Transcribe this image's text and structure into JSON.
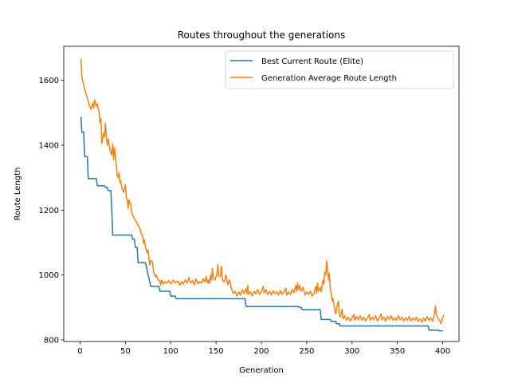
{
  "chart_data": {
    "type": "line",
    "title": "Routes throughout the generations",
    "xlabel": "Generation",
    "ylabel": "Route Length",
    "xlim": [
      -18,
      418
    ],
    "ylim": [
      795,
      1705
    ],
    "xticks": [
      0,
      50,
      100,
      150,
      200,
      250,
      300,
      350,
      400
    ],
    "yticks": [
      800,
      1000,
      1200,
      1400,
      1600
    ],
    "xtick_labels": [
      "0",
      "50",
      "100",
      "150",
      "200",
      "250",
      "300",
      "350",
      "400"
    ],
    "ytick_labels": [
      "800",
      "1000",
      "1200",
      "1400",
      "1600"
    ],
    "grid": false,
    "legend_position": "upper right",
    "series": [
      {
        "name": "Best Current Route (Elite)",
        "color": "#1f77b4",
        "points": [
          [
            1,
            1485
          ],
          [
            2,
            1440
          ],
          [
            4,
            1440
          ],
          [
            5,
            1365
          ],
          [
            8,
            1365
          ],
          [
            9,
            1297
          ],
          [
            18,
            1297
          ],
          [
            19,
            1275
          ],
          [
            27,
            1275
          ],
          [
            28,
            1270
          ],
          [
            30,
            1270
          ],
          [
            31,
            1260
          ],
          [
            34,
            1260
          ],
          [
            35,
            1200
          ],
          [
            36,
            1123
          ],
          [
            57,
            1123
          ],
          [
            58,
            1110
          ],
          [
            60,
            1110
          ],
          [
            61,
            1085
          ],
          [
            63,
            1085
          ],
          [
            64,
            1038
          ],
          [
            72,
            1038
          ],
          [
            73,
            1030
          ],
          [
            75,
            1000
          ],
          [
            76,
            990
          ],
          [
            78,
            965
          ],
          [
            87,
            965
          ],
          [
            88,
            950
          ],
          [
            99,
            950
          ],
          [
            100,
            935
          ],
          [
            105,
            935
          ],
          [
            106,
            927
          ],
          [
            182,
            927
          ],
          [
            183,
            903
          ],
          [
            241,
            903
          ],
          [
            242,
            900
          ],
          [
            244,
            900
          ],
          [
            245,
            893
          ],
          [
            265,
            893
          ],
          [
            266,
            863
          ],
          [
            276,
            863
          ],
          [
            277,
            857
          ],
          [
            282,
            857
          ],
          [
            283,
            850
          ],
          [
            286,
            850
          ],
          [
            287,
            843
          ],
          [
            384,
            843
          ],
          [
            385,
            830
          ],
          [
            395,
            830
          ],
          [
            396,
            828
          ],
          [
            400,
            828
          ]
        ]
      },
      {
        "name": "Generation Average Route Length",
        "color": "#ff7f0e",
        "points": [
          [
            1,
            1665
          ],
          [
            2,
            1610
          ],
          [
            4,
            1585
          ],
          [
            6,
            1565
          ],
          [
            8,
            1545
          ],
          [
            10,
            1525
          ],
          [
            12,
            1510
          ],
          [
            14,
            1530
          ],
          [
            15,
            1515
          ],
          [
            16,
            1540
          ],
          [
            18,
            1520
          ],
          [
            19,
            1528
          ],
          [
            21,
            1500
          ],
          [
            22,
            1470
          ],
          [
            23,
            1482
          ],
          [
            24,
            1405
          ],
          [
            26,
            1438
          ],
          [
            27,
            1425
          ],
          [
            28,
            1468
          ],
          [
            29,
            1430
          ],
          [
            30,
            1400
          ],
          [
            31,
            1420
          ],
          [
            33,
            1385
          ],
          [
            35,
            1370
          ],
          [
            36,
            1405
          ],
          [
            37,
            1355
          ],
          [
            38,
            1392
          ],
          [
            40,
            1340
          ],
          [
            41,
            1305
          ],
          [
            42,
            1300
          ],
          [
            43,
            1315
          ],
          [
            44,
            1285
          ],
          [
            45,
            1290
          ],
          [
            46,
            1268
          ],
          [
            48,
            1255
          ],
          [
            50,
            1278
          ],
          [
            51,
            1240
          ],
          [
            52,
            1230
          ],
          [
            53,
            1205
          ],
          [
            54,
            1232
          ],
          [
            56,
            1215
          ],
          [
            57,
            1190
          ],
          [
            59,
            1180
          ],
          [
            60,
            1172
          ],
          [
            62,
            1165
          ],
          [
            64,
            1152
          ],
          [
            66,
            1145
          ],
          [
            67,
            1130
          ],
          [
            69,
            1120
          ],
          [
            70,
            1098
          ],
          [
            71,
            1108
          ],
          [
            72,
            1088
          ],
          [
            74,
            1068
          ],
          [
            75,
            1078
          ],
          [
            76,
            1050
          ],
          [
            77,
            1030
          ],
          [
            78,
            1045
          ],
          [
            80,
            1040
          ],
          [
            81,
            1010
          ],
          [
            83,
            995
          ],
          [
            84,
            1000
          ],
          [
            86,
            985
          ],
          [
            88,
            982
          ],
          [
            89,
            968
          ],
          [
            90,
            985
          ],
          [
            92,
            972
          ],
          [
            94,
            980
          ],
          [
            96,
            975
          ],
          [
            98,
            983
          ],
          [
            100,
            972
          ],
          [
            103,
            985
          ],
          [
            105,
            975
          ],
          [
            108,
            982
          ],
          [
            110,
            968
          ],
          [
            112,
            980
          ],
          [
            114,
            972
          ],
          [
            116,
            985
          ],
          [
            118,
            975
          ],
          [
            120,
            992
          ],
          [
            122,
            975
          ],
          [
            124,
            983
          ],
          [
            126,
            970
          ],
          [
            128,
            988
          ],
          [
            130,
            973
          ],
          [
            132,
            980
          ],
          [
            134,
            975
          ],
          [
            136,
            988
          ],
          [
            138,
            978
          ],
          [
            139,
            995
          ],
          [
            141,
            975
          ],
          [
            142,
            985
          ],
          [
            143,
            975
          ],
          [
            144,
            1000
          ],
          [
            145,
            985
          ],
          [
            146,
            1020
          ],
          [
            147,
            990
          ],
          [
            149,
            985
          ],
          [
            151,
            1005
          ],
          [
            152,
            1033
          ],
          [
            153,
            995
          ],
          [
            155,
            998
          ],
          [
            156,
            1028
          ],
          [
            157,
            985
          ],
          [
            159,
            978
          ],
          [
            161,
            1000
          ],
          [
            163,
            970
          ],
          [
            165,
            985
          ],
          [
            167,
            958
          ],
          [
            169,
            943
          ],
          [
            171,
            950
          ],
          [
            173,
            935
          ],
          [
            175,
            948
          ],
          [
            177,
            938
          ],
          [
            179,
            955
          ],
          [
            181,
            943
          ],
          [
            183,
            958
          ],
          [
            184,
            942
          ],
          [
            185,
            968
          ],
          [
            186,
            940
          ],
          [
            188,
            948
          ],
          [
            190,
            936
          ],
          [
            192,
            950
          ],
          [
            194,
            942
          ],
          [
            196,
            955
          ],
          [
            198,
            940
          ],
          [
            200,
            950
          ],
          [
            202,
            965
          ],
          [
            203,
            945
          ],
          [
            205,
            955
          ],
          [
            207,
            940
          ],
          [
            209,
            950
          ],
          [
            211,
            938
          ],
          [
            213,
            952
          ],
          [
            215,
            943
          ],
          [
            217,
            948
          ],
          [
            219,
            938
          ],
          [
            221,
            952
          ],
          [
            223,
            940
          ],
          [
            225,
            948
          ],
          [
            227,
            960
          ],
          [
            228,
            938
          ],
          [
            230,
            948
          ],
          [
            232,
            940
          ],
          [
            234,
            955
          ],
          [
            236,
            945
          ],
          [
            238,
            968
          ],
          [
            239,
            950
          ],
          [
            240,
            975
          ],
          [
            241,
            955
          ],
          [
            242,
            968
          ],
          [
            244,
            950
          ],
          [
            246,
            962
          ],
          [
            248,
            938
          ],
          [
            250,
            948
          ],
          [
            252,
            940
          ],
          [
            254,
            950
          ],
          [
            256,
            935
          ],
          [
            258,
            942
          ],
          [
            260,
            965
          ],
          [
            261,
            945
          ],
          [
            262,
            975
          ],
          [
            263,
            950
          ],
          [
            265,
            962
          ],
          [
            266,
            948
          ],
          [
            267,
            968
          ],
          [
            268,
            985
          ],
          [
            269,
            972
          ],
          [
            270,
            1010
          ],
          [
            271,
            1000
          ],
          [
            272,
            1043
          ],
          [
            273,
            1020
          ],
          [
            274,
            985
          ],
          [
            275,
            1005
          ],
          [
            276,
            955
          ],
          [
            277,
            945
          ],
          [
            278,
            920
          ],
          [
            279,
            928
          ],
          [
            280,
            910
          ],
          [
            282,
            880
          ],
          [
            283,
            895
          ],
          [
            284,
            910
          ],
          [
            285,
            920
          ],
          [
            286,
            882
          ],
          [
            287,
            870
          ],
          [
            288,
            878
          ],
          [
            289,
            895
          ],
          [
            290,
            865
          ],
          [
            292,
            875
          ],
          [
            294,
            860
          ],
          [
            296,
            870
          ],
          [
            298,
            858
          ],
          [
            300,
            868
          ],
          [
            302,
            878
          ],
          [
            303,
            860
          ],
          [
            305,
            872
          ],
          [
            307,
            862
          ],
          [
            309,
            875
          ],
          [
            311,
            860
          ],
          [
            313,
            870
          ],
          [
            315,
            858
          ],
          [
            317,
            868
          ],
          [
            319,
            878
          ],
          [
            320,
            860
          ],
          [
            322,
            870
          ],
          [
            324,
            862
          ],
          [
            326,
            875
          ],
          [
            328,
            858
          ],
          [
            330,
            868
          ],
          [
            332,
            880
          ],
          [
            333,
            862
          ],
          [
            335,
            870
          ],
          [
            337,
            858
          ],
          [
            339,
            872
          ],
          [
            341,
            862
          ],
          [
            343,
            875
          ],
          [
            345,
            860
          ],
          [
            347,
            868
          ],
          [
            349,
            860
          ],
          [
            351,
            875
          ],
          [
            353,
            862
          ],
          [
            355,
            870
          ],
          [
            357,
            858
          ],
          [
            359,
            868
          ],
          [
            361,
            860
          ],
          [
            363,
            872
          ],
          [
            365,
            858
          ],
          [
            367,
            868
          ],
          [
            369,
            860
          ],
          [
            371,
            870
          ],
          [
            373,
            857
          ],
          [
            375,
            865
          ],
          [
            377,
            855
          ],
          [
            379,
            868
          ],
          [
            381,
            858
          ],
          [
            383,
            872
          ],
          [
            385,
            860
          ],
          [
            387,
            868
          ],
          [
            389,
            857
          ],
          [
            391,
            880
          ],
          [
            392,
            905
          ],
          [
            393,
            880
          ],
          [
            395,
            865
          ],
          [
            397,
            858
          ],
          [
            398,
            850
          ],
          [
            399,
            860
          ],
          [
            400,
            868
          ],
          [
            401,
            875
          ]
        ]
      }
    ]
  }
}
